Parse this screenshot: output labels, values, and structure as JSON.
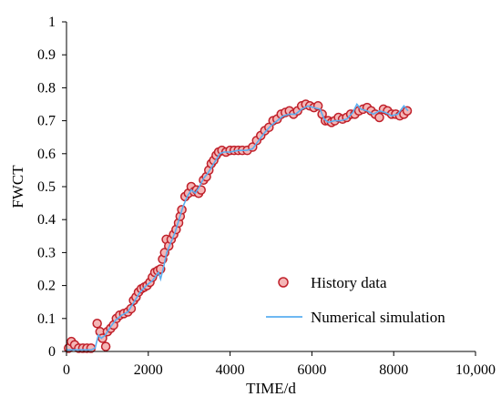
{
  "chart_data": {
    "type": "scatter",
    "xlabel": "TIME/d",
    "ylabel": "FWCT",
    "xlim": [
      0,
      10000
    ],
    "ylim": [
      0,
      1
    ],
    "x_ticks": [
      "0",
      "2000",
      "4000",
      "6000",
      "8000",
      "10,000"
    ],
    "y_ticks": [
      "0",
      "0.1",
      "0.2",
      "0.3",
      "0.4",
      "0.5",
      "0.6",
      "0.7",
      "0.8",
      "0.9",
      "1"
    ],
    "legend": {
      "position": "bottom-right"
    },
    "grid": false,
    "series": [
      {
        "name": "History data",
        "kind": "markers",
        "marker_fill": "#f4b6b6",
        "marker_stroke": "#c0202a",
        "points": [
          [
            50,
            0.01
          ],
          [
            120,
            0.03
          ],
          [
            200,
            0.02
          ],
          [
            300,
            0.01
          ],
          [
            400,
            0.01
          ],
          [
            500,
            0.01
          ],
          [
            600,
            0.01
          ],
          [
            750,
            0.085
          ],
          [
            820,
            0.06
          ],
          [
            880,
            0.04
          ],
          [
            960,
            0.015
          ],
          [
            1000,
            0.06
          ],
          [
            1080,
            0.07
          ],
          [
            1150,
            0.08
          ],
          [
            1220,
            0.1
          ],
          [
            1300,
            0.11
          ],
          [
            1400,
            0.115
          ],
          [
            1500,
            0.12
          ],
          [
            1580,
            0.13
          ],
          [
            1640,
            0.155
          ],
          [
            1700,
            0.165
          ],
          [
            1760,
            0.18
          ],
          [
            1830,
            0.19
          ],
          [
            1900,
            0.195
          ],
          [
            1970,
            0.2
          ],
          [
            2040,
            0.21
          ],
          [
            2100,
            0.225
          ],
          [
            2160,
            0.24
          ],
          [
            2230,
            0.245
          ],
          [
            2300,
            0.25
          ],
          [
            2350,
            0.28
          ],
          [
            2400,
            0.3
          ],
          [
            2440,
            0.34
          ],
          [
            2500,
            0.32
          ],
          [
            2560,
            0.34
          ],
          [
            2620,
            0.355
          ],
          [
            2680,
            0.37
          ],
          [
            2740,
            0.39
          ],
          [
            2780,
            0.41
          ],
          [
            2820,
            0.43
          ],
          [
            2900,
            0.47
          ],
          [
            2980,
            0.48
          ],
          [
            3050,
            0.5
          ],
          [
            3120,
            0.485
          ],
          [
            3180,
            0.49
          ],
          [
            3230,
            0.48
          ],
          [
            3290,
            0.49
          ],
          [
            3350,
            0.52
          ],
          [
            3420,
            0.53
          ],
          [
            3480,
            0.55
          ],
          [
            3540,
            0.57
          ],
          [
            3600,
            0.58
          ],
          [
            3660,
            0.595
          ],
          [
            3720,
            0.605
          ],
          [
            3800,
            0.61
          ],
          [
            3900,
            0.605
          ],
          [
            4000,
            0.61
          ],
          [
            4100,
            0.61
          ],
          [
            4200,
            0.61
          ],
          [
            4300,
            0.61
          ],
          [
            4420,
            0.61
          ],
          [
            4550,
            0.62
          ],
          [
            4650,
            0.64
          ],
          [
            4750,
            0.655
          ],
          [
            4850,
            0.67
          ],
          [
            4950,
            0.68
          ],
          [
            5050,
            0.7
          ],
          [
            5150,
            0.705
          ],
          [
            5250,
            0.72
          ],
          [
            5350,
            0.725
          ],
          [
            5450,
            0.73
          ],
          [
            5550,
            0.72
          ],
          [
            5650,
            0.73
          ],
          [
            5750,
            0.745
          ],
          [
            5850,
            0.75
          ],
          [
            5950,
            0.745
          ],
          [
            6050,
            0.74
          ],
          [
            6150,
            0.745
          ],
          [
            6250,
            0.72
          ],
          [
            6330,
            0.7
          ],
          [
            6400,
            0.7
          ],
          [
            6480,
            0.695
          ],
          [
            6560,
            0.7
          ],
          [
            6650,
            0.71
          ],
          [
            6750,
            0.705
          ],
          [
            6850,
            0.71
          ],
          [
            6950,
            0.72
          ],
          [
            7050,
            0.72
          ],
          [
            7150,
            0.73
          ],
          [
            7250,
            0.735
          ],
          [
            7350,
            0.74
          ],
          [
            7450,
            0.73
          ],
          [
            7550,
            0.72
          ],
          [
            7650,
            0.71
          ],
          [
            7750,
            0.735
          ],
          [
            7850,
            0.73
          ],
          [
            7950,
            0.72
          ],
          [
            8050,
            0.72
          ],
          [
            8150,
            0.715
          ],
          [
            8250,
            0.72
          ],
          [
            8330,
            0.73
          ]
        ]
      },
      {
        "name": "Numerical simulation",
        "kind": "line",
        "color": "#5aaef0",
        "points": [
          [
            0,
            0.005
          ],
          [
            200,
            0.005
          ],
          [
            400,
            0.005
          ],
          [
            600,
            0.005
          ],
          [
            700,
            0.01
          ],
          [
            780,
            0.05
          ],
          [
            850,
            0.04
          ],
          [
            950,
            0.05
          ],
          [
            1050,
            0.07
          ],
          [
            1200,
            0.095
          ],
          [
            1350,
            0.11
          ],
          [
            1500,
            0.12
          ],
          [
            1650,
            0.15
          ],
          [
            1800,
            0.18
          ],
          [
            1950,
            0.2
          ],
          [
            2100,
            0.215
          ],
          [
            2250,
            0.24
          ],
          [
            2300,
            0.22
          ],
          [
            2380,
            0.26
          ],
          [
            2450,
            0.3
          ],
          [
            2550,
            0.33
          ],
          [
            2650,
            0.36
          ],
          [
            2750,
            0.4
          ],
          [
            2850,
            0.44
          ],
          [
            2950,
            0.47
          ],
          [
            3050,
            0.49
          ],
          [
            3150,
            0.48
          ],
          [
            3250,
            0.5
          ],
          [
            3350,
            0.525
          ],
          [
            3450,
            0.54
          ],
          [
            3550,
            0.56
          ],
          [
            3650,
            0.58
          ],
          [
            3750,
            0.6
          ],
          [
            3850,
            0.605
          ],
          [
            4000,
            0.605
          ],
          [
            4200,
            0.61
          ],
          [
            4400,
            0.61
          ],
          [
            4550,
            0.615
          ],
          [
            4700,
            0.64
          ],
          [
            4850,
            0.665
          ],
          [
            5000,
            0.685
          ],
          [
            5150,
            0.7
          ],
          [
            5300,
            0.715
          ],
          [
            5450,
            0.72
          ],
          [
            5600,
            0.72
          ],
          [
            5750,
            0.735
          ],
          [
            5900,
            0.745
          ],
          [
            6050,
            0.74
          ],
          [
            6200,
            0.735
          ],
          [
            6300,
            0.705
          ],
          [
            6400,
            0.695
          ],
          [
            6550,
            0.7
          ],
          [
            6700,
            0.7
          ],
          [
            6850,
            0.705
          ],
          [
            7000,
            0.725
          ],
          [
            7100,
            0.75
          ],
          [
            7200,
            0.735
          ],
          [
            7350,
            0.73
          ],
          [
            7500,
            0.72
          ],
          [
            7650,
            0.73
          ],
          [
            7800,
            0.725
          ],
          [
            7950,
            0.715
          ],
          [
            8100,
            0.72
          ],
          [
            8250,
            0.745
          ],
          [
            8350,
            0.73
          ]
        ]
      }
    ]
  }
}
